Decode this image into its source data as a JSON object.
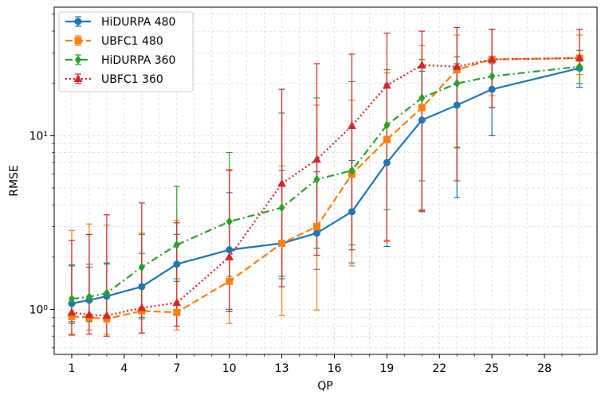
{
  "chart_data": {
    "type": "line",
    "title": "",
    "xlabel": "QP",
    "ylabel": "RMSE",
    "yscale": "log",
    "ylim": [
      0.55,
      55
    ],
    "xlim": [
      0,
      31
    ],
    "xticks": [
      1,
      4,
      7,
      10,
      13,
      16,
      19,
      22,
      25,
      28
    ],
    "xtick_labels": [
      "1",
      "4",
      "7",
      "10",
      "13",
      "16",
      "19",
      "22",
      "25",
      "28"
    ],
    "yticks": [
      1,
      10
    ],
    "ytick_labels": [
      "10⁰",
      "10¹"
    ],
    "grid": true,
    "legend_position": "top-left",
    "x": [
      1,
      2,
      3,
      5,
      7,
      10,
      13,
      15,
      17,
      19,
      21,
      23,
      25,
      30
    ],
    "series": [
      {
        "name": "HiDURPA 480",
        "color": "#1f77b4",
        "linestyle": "solid",
        "marker": "circle",
        "values": [
          1.08,
          1.13,
          1.19,
          1.35,
          1.82,
          2.2,
          2.4,
          2.75,
          3.65,
          7.0,
          12.3,
          15.0,
          18.5,
          24.5
        ],
        "err_low": [
          0.85,
          0.86,
          0.88,
          0.9,
          1.45,
          1.0,
          1.5,
          1.7,
          1.85,
          2.3,
          3.7,
          4.4,
          10.0,
          19.0
        ],
        "err_high": [
          1.8,
          1.75,
          1.85,
          2.1,
          2.7,
          4.7,
          6.3,
          6.2,
          7.2,
          19.8,
          23.5,
          26.0,
          26.0,
          29.0
        ]
      },
      {
        "name": "UBFC1 480",
        "color": "#ff7f0e",
        "linestyle": "dashed",
        "marker": "square",
        "values": [
          0.91,
          0.9,
          0.88,
          0.98,
          0.96,
          1.45,
          2.4,
          3.0,
          6.0,
          9.5,
          14.5,
          24.0,
          27.5,
          28.0
        ],
        "err_low": [
          0.72,
          0.76,
          0.72,
          0.73,
          0.76,
          0.83,
          0.92,
          0.99,
          1.78,
          2.45,
          3.75,
          8.6,
          17.0,
          22.5
        ],
        "err_high": [
          2.85,
          3.1,
          3.05,
          2.75,
          3.25,
          6.4,
          6.7,
          15.0,
          16.0,
          23.0,
          33.0,
          38.0,
          41.0,
          38.0
        ]
      },
      {
        "name": "HiDURPA 360",
        "color": "#2ca02c",
        "linestyle": "dashdot",
        "marker": "diamond",
        "values": [
          1.15,
          1.18,
          1.24,
          1.75,
          2.35,
          3.2,
          3.85,
          5.6,
          6.3,
          11.5,
          16.5,
          20.0,
          22.0,
          25.0
        ],
        "err_low": [
          0.83,
          0.85,
          0.86,
          0.88,
          1.5,
          1.55,
          1.55,
          2.25,
          2.35,
          3.75,
          5.5,
          8.5,
          14.5,
          20.0
        ],
        "err_high": [
          1.78,
          1.82,
          1.82,
          2.7,
          5.1,
          8.0,
          13.5,
          16.5,
          20.5,
          24.0,
          27.5,
          28.5,
          28.5,
          31.0
        ]
      },
      {
        "name": "UBFC1 360",
        "color": "#d62728",
        "linestyle": "dotted",
        "marker": "triangle",
        "values": [
          0.96,
          0.93,
          0.92,
          1.02,
          1.09,
          2.0,
          5.3,
          7.3,
          11.4,
          19.5,
          25.5,
          25.0,
          27.5,
          28.0
        ],
        "err_low": [
          0.71,
          0.72,
          0.7,
          0.73,
          0.8,
          0.97,
          1.35,
          2.05,
          2.2,
          2.5,
          3.65,
          5.5,
          14.5,
          24.0
        ],
        "err_high": [
          2.5,
          2.7,
          3.5,
          4.1,
          3.15,
          6.3,
          18.5,
          26.0,
          29.5,
          39.0,
          40.0,
          42.0,
          41.0,
          41.0
        ]
      }
    ]
  }
}
